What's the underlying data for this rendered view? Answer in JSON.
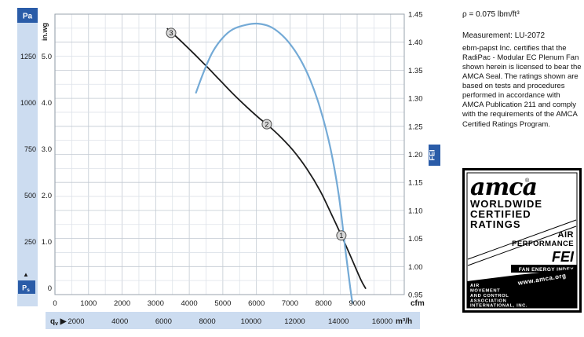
{
  "colors": {
    "accent": "#2a5ca8",
    "band": "#ccdcf0",
    "grid_major": "#c2c9d2",
    "grid_minor": "#dde2e9",
    "grid_border": "#9aa3ad",
    "pressure_curve": "#1c1c1c",
    "fei_curve": "#74aad6"
  },
  "right_panel": {
    "density": "ρ = 0.075 lbm/ft³",
    "measurement": "Measurement: LU-2072",
    "certification": "ebm-papst Inc. certifies that the RadiPac - Modular EC Plenum Fan shown herein is licensed to bear the AMCA Seal. The ratings shown are based on tests and procedures performed in accordance with AMCA Publication 211 and comply with the requirements of the AMCA Certified Ratings Program.",
    "amca_logo": {
      "brand": "amca",
      "registered": "®",
      "tagline": [
        "WORLDWIDE",
        "CERTIFIED",
        "RATINGS"
      ],
      "category": [
        "AIR",
        "PERFORMANCE"
      ],
      "fei": "FEI",
      "fei_sub": "FAN ENERGY INDEX",
      "website": "www.amca.org",
      "association": [
        "AIR",
        "MOVEMENT",
        "AND CONTROL",
        "ASSOCIATION",
        "INTERNATIONAL, INC."
      ]
    }
  },
  "chart_data": {
    "type": "line",
    "title": "",
    "x_axis_cfm": {
      "unit": "cfm",
      "ticks": [
        0,
        1000,
        2000,
        3000,
        4000,
        5000,
        6000,
        7000,
        8000,
        9000
      ],
      "range": [
        0,
        10400
      ]
    },
    "x_axis_m3h": {
      "unit": "m³/h",
      "prefix_main": "q",
      "prefix_sub": "v",
      "prefix_arrow": "▶",
      "ticks": [
        2000,
        4000,
        6000,
        8000,
        10000,
        12000,
        14000,
        16000
      ]
    },
    "y_axis_pa": {
      "unit": "Pa",
      "ticks": [
        1250,
        1000,
        750,
        500,
        250
      ],
      "arrow": "▲",
      "symbol_main": "P",
      "symbol_sub": "s"
    },
    "y_axis_inwg": {
      "unit": "in.wg",
      "ticks": [
        "5.0",
        "4.0",
        "3.0",
        "2.0",
        "1.0",
        "0"
      ],
      "range": [
        0,
        5.0
      ]
    },
    "y_axis_fei": {
      "unit": "FEI",
      "ticks": [
        "1.45",
        "1.40",
        "1.35",
        "1.30",
        "1.25",
        "1.20",
        "1.15",
        "1.10",
        "1.05",
        "1.00",
        "0.95"
      ],
      "range": [
        0.95,
        1.45
      ]
    },
    "series": [
      {
        "name": "static-pressure-curve",
        "color": "#1c1c1c",
        "y_axis": "inwg",
        "points": [
          [
            3350,
            5.6
          ],
          [
            3700,
            5.37
          ],
          [
            4100,
            5.09
          ],
          [
            4500,
            4.8
          ],
          [
            4900,
            4.5
          ],
          [
            5300,
            4.2
          ],
          [
            5700,
            3.92
          ],
          [
            6100,
            3.66
          ],
          [
            6310,
            3.54
          ],
          [
            6700,
            3.28
          ],
          [
            7100,
            2.97
          ],
          [
            7500,
            2.58
          ],
          [
            7900,
            2.1
          ],
          [
            8200,
            1.65
          ],
          [
            8530,
            1.14
          ],
          [
            8800,
            0.7
          ],
          [
            9100,
            0.2
          ],
          [
            9250,
            0.0
          ]
        ]
      },
      {
        "name": "fei-curve",
        "color": "#74aad6",
        "y_axis": "fei",
        "points": [
          [
            4200,
            1.31
          ],
          [
            4450,
            1.35
          ],
          [
            4700,
            1.383
          ],
          [
            5000,
            1.408
          ],
          [
            5300,
            1.423
          ],
          [
            5700,
            1.431
          ],
          [
            6050,
            1.433
          ],
          [
            6400,
            1.428
          ],
          [
            6700,
            1.416
          ],
          [
            7000,
            1.397
          ],
          [
            7300,
            1.37
          ],
          [
            7600,
            1.333
          ],
          [
            7900,
            1.282
          ],
          [
            8200,
            1.212
          ],
          [
            8450,
            1.128
          ],
          [
            8650,
            1.03
          ],
          [
            8800,
            0.96
          ],
          [
            8860,
            0.935
          ]
        ]
      }
    ],
    "operating_points": [
      {
        "label": "3",
        "cfm": 3460,
        "inwg": 5.51
      },
      {
        "label": "2",
        "cfm": 6310,
        "inwg": 3.54
      },
      {
        "label": "1",
        "cfm": 8530,
        "inwg": 1.14
      }
    ]
  }
}
